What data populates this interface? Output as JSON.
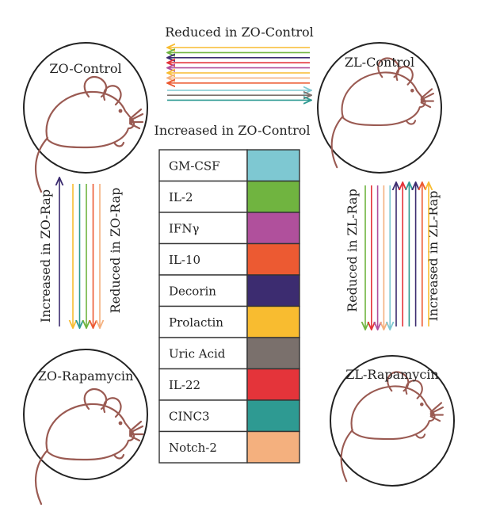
{
  "groups": {
    "zo_control": "ZO-Control",
    "zl_control": "ZL-Control",
    "zo_rapamycin": "ZO-Rapamycin",
    "zl_rapamycin": "ZL-Rapamycin"
  },
  "arrow_labels": {
    "top_reduced": "Reduced in ZO-Control",
    "top_increased": "Increased in ZO-Control",
    "left_increased": "Increased in ZO-Rap",
    "left_reduced": "Reduced in ZO-Rap",
    "right_reduced": "Reduced in ZL-Rap",
    "right_increased": "Increased in ZL-Rap"
  },
  "legend": [
    {
      "key": "gmcsf",
      "label": "GM-CSF",
      "color": "#7ec8d2"
    },
    {
      "key": "il2",
      "label": "IL-2",
      "color": "#70b440"
    },
    {
      "key": "ifng",
      "label": "IFNγ",
      "color": "#b0509c"
    },
    {
      "key": "il10",
      "label": "IL-10",
      "color": "#ec5a32"
    },
    {
      "key": "decorin",
      "label": "Decorin",
      "color": "#3c2c70"
    },
    {
      "key": "prolactin",
      "label": "Prolactin",
      "color": "#f8bc30"
    },
    {
      "key": "uricacid",
      "label": "Uric Acid",
      "color": "#7a706c"
    },
    {
      "key": "il22",
      "label": "IL-22",
      "color": "#e4343a"
    },
    {
      "key": "cinc3",
      "label": "CINC3",
      "color": "#2e9a92"
    },
    {
      "key": "notch2",
      "label": "Notch-2",
      "color": "#f4b07e"
    }
  ],
  "top_arrows_reduced": [
    "prolactin",
    "il2",
    "decorin",
    "il22",
    "ifng",
    "prolactin",
    "notch2",
    "il10"
  ],
  "top_arrows_increased": [
    "gmcsf",
    "uricacid",
    "cinc3"
  ],
  "left_arrows_up": [
    "decorin"
  ],
  "left_arrows_down": [
    "prolactin",
    "cinc3",
    "il2",
    "il10",
    "notch2"
  ],
  "right_arrows_down": [
    "il2",
    "il22",
    "ifng",
    "notch2",
    "gmcsf"
  ],
  "right_arrows_up": [
    "decorin",
    "il22",
    "cinc3",
    "decorin",
    "il10",
    "prolactin"
  ]
}
